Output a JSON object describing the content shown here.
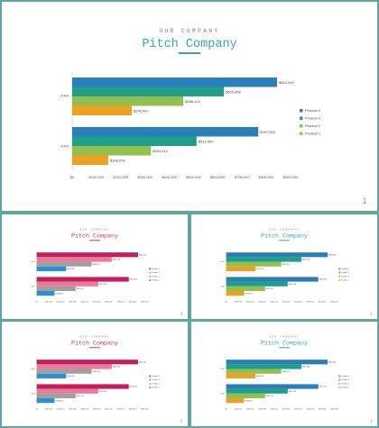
{
  "slides": [
    {
      "id": "slide-main",
      "eyebrow": "OUR COMPANY",
      "title": "Pitch Company",
      "page_number": "1",
      "palette": "teal",
      "chart_index": 0
    },
    {
      "id": "slide-2",
      "eyebrow": "OUR COMPANY",
      "title": "Pitch Company",
      "page_number": "2",
      "palette": "pink",
      "chart_index": 1
    },
    {
      "id": "slide-3",
      "eyebrow": "OUR COMPANY",
      "title": "Pitch Company",
      "page_number": "1",
      "palette": "teal",
      "chart_index": 0
    },
    {
      "id": "slide-4",
      "eyebrow": "OUR COMPANY",
      "title": "Pitch Company",
      "page_number": "2",
      "palette": "pink",
      "chart_index": 1
    },
    {
      "id": "slide-5",
      "eyebrow": "OUR COMPANY",
      "title": "Pitch Company",
      "page_number": "1",
      "palette": "teal",
      "chart_index": 0
    }
  ],
  "palettes": {
    "teal": {
      "title": "#3aa6a0",
      "accent": "#3aa6a0",
      "series": [
        "#2a7fb8",
        "#1f9e8a",
        "#93bf4f",
        "#f0a020"
      ]
    },
    "pink": {
      "title": "#c0395f",
      "accent": "#c0395f",
      "series": [
        "#c41e5c",
        "#e87a9a",
        "#a0a0a0",
        "#2b8fd8"
      ]
    }
  },
  "chart_data": [
    {
      "type": "bar",
      "orientation": "horizontal",
      "categories": [
        "2004",
        "2003"
      ],
      "series": [
        {
          "name": "Product 4",
          "values": [
            844200,
            767000
          ]
        },
        {
          "name": "Product 3",
          "values": [
            625456,
            512500
          ]
        },
        {
          "name": "Product 2",
          "values": [
            458124,
            324512
          ]
        },
        {
          "name": "Product 1",
          "values": [
            245487,
            148678
          ]
        }
      ],
      "data_labels": [
        [
          "$844,200",
          "$625,456",
          "$458,124",
          "$245,487"
        ],
        [
          "$767,000",
          "$512,500",
          "$324,512",
          "$148,678"
        ]
      ],
      "xlim": [
        0,
        900000
      ],
      "x_ticks": [
        "$0",
        "$100,000",
        "$200,000",
        "$300,000",
        "$400,000",
        "$500,000",
        "$600,000",
        "$700,000",
        "$800,000",
        "$900,000"
      ],
      "legend": [
        "Product 4",
        "Product 3",
        "Product 2",
        "Product 1"
      ],
      "legend_position": "right",
      "grid": false
    },
    {
      "type": "bar",
      "orientation": "horizontal",
      "categories": [
        "2004",
        "2003"
      ],
      "series": [
        {
          "name": "Product 4",
          "values": [
            844200,
            767000
          ]
        },
        {
          "name": "Product 3",
          "values": [
            625456,
            512500
          ]
        },
        {
          "name": "Product 2",
          "values": [
            458124,
            324512
          ]
        },
        {
          "name": "Product 1",
          "values": [
            245487,
            148678
          ]
        }
      ],
      "data_labels": [
        [
          "$844,200",
          "$625,456",
          "$458,124",
          "$245,487"
        ],
        [
          "$767,000",
          "$512,500",
          "$324,512",
          "$148,678"
        ]
      ],
      "xlim": [
        0,
        900000
      ],
      "x_ticks": [
        "$0",
        "$100,000",
        "$200,000",
        "$300,000",
        "$400,000",
        "$500,000",
        "$600,000",
        "$700,000",
        "$800,000",
        "$900,000"
      ],
      "legend": [
        "Product 4",
        "Product 3",
        "Product 2",
        "Product 1"
      ],
      "legend_position": "right",
      "grid": false
    }
  ]
}
